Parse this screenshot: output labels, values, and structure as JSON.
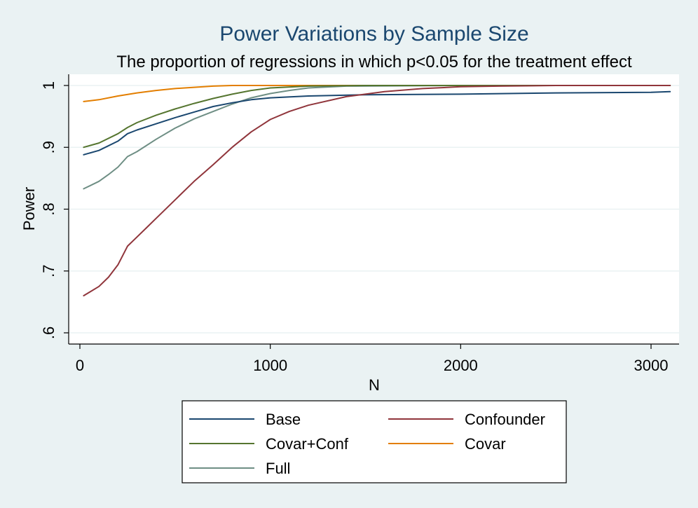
{
  "chart_data": {
    "type": "line",
    "title": "Power Variations by Sample Size",
    "subtitle": "The proportion of regressions in which p<0.05 for the treatment effect",
    "xlabel": "N",
    "ylabel": "Power",
    "xlim": [
      0,
      3100
    ],
    "ylim": [
      0.6,
      1.0
    ],
    "xticks": [
      0,
      1000,
      2000,
      3000
    ],
    "xtick_labels": [
      "0",
      "1000",
      "2000",
      "3000"
    ],
    "yticks": [
      0.6,
      0.7,
      0.8,
      0.9,
      1.0
    ],
    "ytick_labels": [
      ".6",
      ".7",
      ".8",
      ".9",
      "1"
    ],
    "grid": "horizontal",
    "legend_position": "bottom",
    "series": [
      {
        "name": "Base",
        "color": "#1a476f",
        "x": [
          20,
          100,
          200,
          250,
          300,
          400,
          500,
          600,
          700,
          800,
          900,
          1000,
          1200,
          1500,
          2000,
          2500,
          3000,
          3100
        ],
        "values": [
          0.888,
          0.895,
          0.91,
          0.922,
          0.928,
          0.938,
          0.948,
          0.957,
          0.966,
          0.972,
          0.977,
          0.98,
          0.983,
          0.985,
          0.986,
          0.988,
          0.989,
          0.99
        ]
      },
      {
        "name": "Confounder",
        "color": "#90353b",
        "x": [
          20,
          100,
          150,
          200,
          250,
          300,
          350,
          400,
          500,
          600,
          700,
          800,
          900,
          1000,
          1100,
          1200,
          1400,
          1600,
          1800,
          2000,
          2200,
          2500,
          3000,
          3100
        ],
        "values": [
          0.66,
          0.675,
          0.69,
          0.71,
          0.74,
          0.755,
          0.77,
          0.785,
          0.815,
          0.845,
          0.872,
          0.9,
          0.925,
          0.945,
          0.958,
          0.968,
          0.982,
          0.99,
          0.995,
          0.998,
          0.999,
          1.0,
          1.0,
          1.0
        ]
      },
      {
        "name": "Covar+Conf",
        "color": "#55752f",
        "x": [
          20,
          100,
          200,
          250,
          300,
          400,
          500,
          600,
          700,
          800,
          900,
          1000,
          1200,
          1500,
          2000,
          3100
        ],
        "values": [
          0.9,
          0.907,
          0.922,
          0.932,
          0.94,
          0.952,
          0.962,
          0.971,
          0.979,
          0.986,
          0.992,
          0.996,
          0.999,
          1.0,
          1.0,
          1.0
        ]
      },
      {
        "name": "Covar",
        "color": "#e37e00",
        "x": [
          20,
          100,
          200,
          300,
          400,
          500,
          600,
          700,
          800,
          1000,
          1500,
          2000,
          3100
        ],
        "values": [
          0.974,
          0.977,
          0.983,
          0.988,
          0.992,
          0.995,
          0.997,
          0.999,
          1.0,
          1.0,
          1.0,
          1.0,
          1.0
        ]
      },
      {
        "name": "Full",
        "color": "#6e8e84",
        "x": [
          20,
          100,
          150,
          200,
          250,
          300,
          400,
          500,
          600,
          700,
          800,
          900,
          1000,
          1100,
          1200,
          1400,
          2000,
          3100
        ],
        "values": [
          0.833,
          0.845,
          0.856,
          0.868,
          0.885,
          0.893,
          0.913,
          0.931,
          0.946,
          0.958,
          0.97,
          0.98,
          0.987,
          0.992,
          0.996,
          0.999,
          1.0,
          1.0
        ]
      }
    ]
  }
}
